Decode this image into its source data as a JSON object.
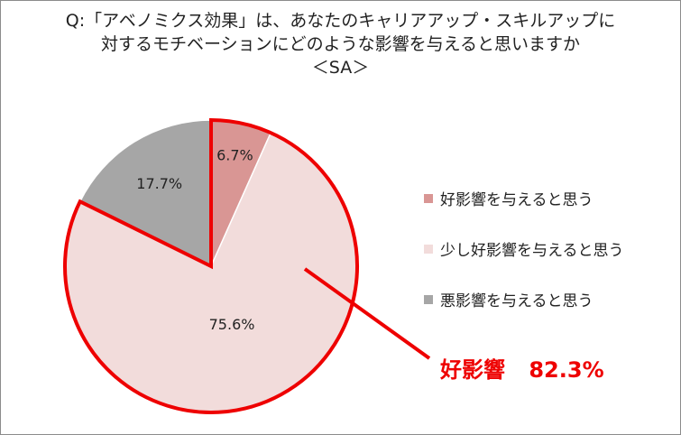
{
  "title_lines": [
    "Q:「アベノミクス効果」は、あなたのキャリアアップ・スキルアップに",
    "対するモチベーションにどのような影響を与えると思いますか",
    "＜SA＞"
  ],
  "chart_data": {
    "type": "pie",
    "start_angle_deg": 0,
    "direction": "clockwise",
    "slices": [
      {
        "label": "好影響を与えると思う",
        "value": 6.7,
        "display": "6.7%",
        "color": "#d99694"
      },
      {
        "label": "少し好影響を与えると思う",
        "value": 75.6,
        "display": "75.6%",
        "color": "#f2dcdb"
      },
      {
        "label": "悪影響を与えると思う",
        "value": 17.7,
        "display": "17.7%",
        "color": "#a6a6a6"
      }
    ],
    "highlight": {
      "slices": [
        "好影響を与えると思う",
        "少し好影響を与えると思う"
      ],
      "border_color": "#ee0000",
      "callout_label": "好影響",
      "callout_value": "82.3%"
    }
  },
  "colors": {
    "text": "#222222",
    "highlight": "#ee0000",
    "slice_edge": "#ffffff"
  }
}
